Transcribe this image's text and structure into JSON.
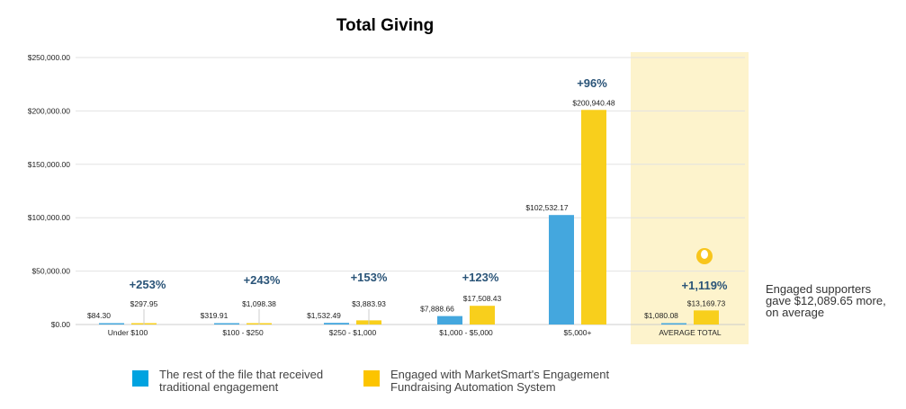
{
  "chart_data": {
    "type": "bar",
    "title": "Total Giving",
    "categories": [
      "Under $100",
      "$100 - $250",
      "$250 - $1,000",
      "$1,000 - $5,000",
      "$5,000+",
      "AVERAGE TOTAL"
    ],
    "series": [
      {
        "name": "The rest of the file that received traditional engagement",
        "color": "#44a7de",
        "values": [
          84.3,
          319.91,
          1532.49,
          7888.66,
          102532.17,
          1080.08
        ],
        "labels": [
          "$84.30",
          "$319.91",
          "$1,532.49",
          "$7,888.66",
          "$102,532.17",
          "$1,080.08"
        ]
      },
      {
        "name": "Engaged with MarketSmart's Engagement Fundraising Automation System",
        "color": "#f8cf1c",
        "values": [
          297.95,
          1098.38,
          3883.93,
          17508.43,
          200940.48,
          13169.73
        ],
        "labels": [
          "$297.95",
          "$1,098.38",
          "$3,883.93",
          "$17,508.43",
          "$200,940.48",
          "$13,169.73"
        ]
      }
    ],
    "increase_labels": [
      "+253%",
      "+243%",
      "+153%",
      "+123%",
      "+96%",
      "+1,119%"
    ],
    "yticks": [
      "$0.00",
      "$50,000.00",
      "$100,000.00",
      "$150,000.00",
      "$200,000.00",
      "$250,000.00"
    ],
    "ylim": [
      0,
      250000
    ],
    "grid": true,
    "legend_position": "bottom",
    "highlight_category": "AVERAGE TOTAL",
    "highlight_color": "#fdf3cc",
    "annotation": "Engaged supporters gave $12,089.65 more, on average",
    "annotation_icon": "lightbulb-icon"
  }
}
